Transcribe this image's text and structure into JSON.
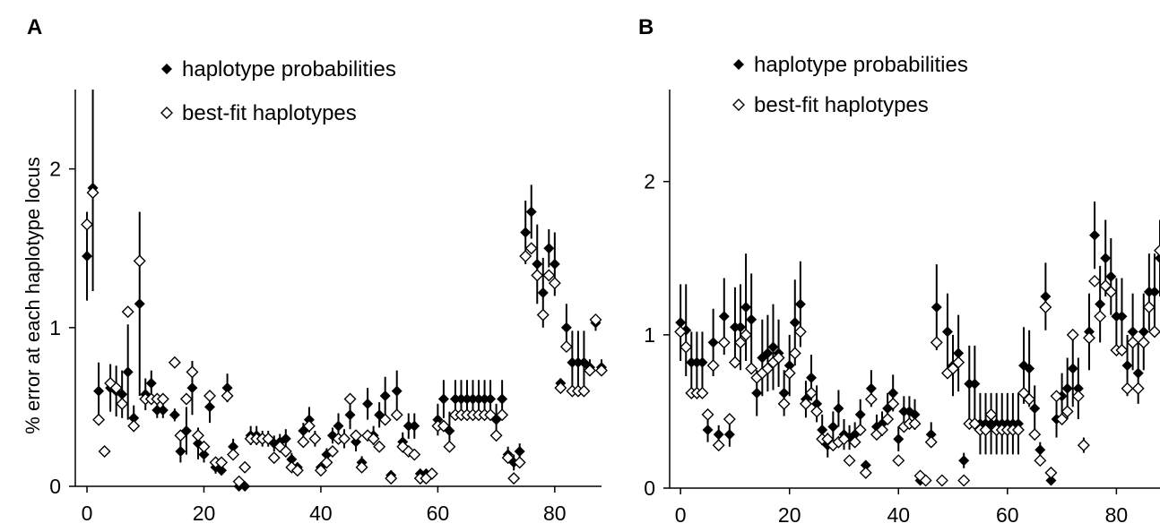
{
  "figure": {
    "ylabel": "% error at each haplotype locus",
    "legend": {
      "prob": "haplotype probabilities",
      "best": "best-fit haplotypes"
    }
  },
  "chart_data": [
    {
      "panel": "A",
      "type": "scatter",
      "ylabel": "% error at each haplotype locus",
      "xlim": [
        -2,
        88
      ],
      "ylim": [
        0,
        2.5
      ],
      "xticks": [
        0,
        20,
        40,
        60,
        80
      ],
      "yticks": [
        0,
        1,
        2
      ],
      "legend_placement": "top-center",
      "series": [
        {
          "name": "haplotype probabilities",
          "marker": "filled-diamond",
          "x": [
            0,
            1,
            2,
            4,
            5,
            6,
            7,
            8,
            9,
            10,
            11,
            12,
            13,
            15,
            16,
            17,
            18,
            19,
            20,
            21,
            22,
            23,
            24,
            25,
            26,
            27,
            28,
            29,
            30,
            31,
            32,
            33,
            34,
            35,
            36,
            37,
            38,
            39,
            40,
            41,
            42,
            43,
            44,
            45,
            46,
            47,
            48,
            49,
            50,
            51,
            52,
            53,
            54,
            55,
            56,
            57,
            58,
            59,
            60,
            61,
            62,
            63,
            64,
            65,
            66,
            67,
            68,
            69,
            70,
            71,
            72,
            73,
            74,
            75,
            76,
            77,
            78,
            79,
            80,
            81,
            82,
            83,
            84,
            85,
            86,
            87,
            88
          ],
          "y": [
            1.45,
            1.88,
            0.6,
            0.62,
            0.6,
            0.58,
            0.72,
            0.43,
            1.15,
            0.58,
            0.65,
            0.48,
            0.48,
            0.45,
            0.22,
            0.35,
            0.62,
            0.27,
            0.2,
            0.5,
            0.12,
            0.1,
            0.62,
            0.25,
            0.0,
            0.0,
            0.32,
            0.32,
            0.3,
            0.3,
            0.27,
            0.28,
            0.3,
            0.17,
            0.12,
            0.35,
            0.42,
            0.3,
            0.12,
            0.2,
            0.32,
            0.38,
            0.3,
            0.45,
            0.28,
            0.15,
            0.52,
            0.32,
            0.45,
            0.57,
            0.07,
            0.6,
            0.28,
            0.38,
            0.38,
            0.08,
            0.08,
            0.08,
            0.42,
            0.55,
            0.35,
            0.55,
            0.55,
            0.55,
            0.55,
            0.55,
            0.55,
            0.55,
            0.42,
            0.55,
            0.2,
            0.15,
            0.22,
            1.6,
            1.73,
            1.4,
            1.22,
            1.5,
            1.4,
            0.65,
            1.0,
            0.78,
            0.78,
            0.78,
            0.75,
            1.03,
            0.75
          ],
          "yerr": [
            0.28,
            0.65,
            0.18,
            0.15,
            0.16,
            0.15,
            0.3,
            0.08,
            0.58,
            0.1,
            0.08,
            0.05,
            0.05,
            0.04,
            0.07,
            0.15,
            0.17,
            0.1,
            0.05,
            0.1,
            0.04,
            0.03,
            0.09,
            0.05,
            0.0,
            0.0,
            0.06,
            0.06,
            0.05,
            0.05,
            0.05,
            0.05,
            0.06,
            0.04,
            0.03,
            0.05,
            0.08,
            0.05,
            0.03,
            0.04,
            0.05,
            0.08,
            0.06,
            0.09,
            0.06,
            0.04,
            0.1,
            0.06,
            0.08,
            0.12,
            0.03,
            0.13,
            0.06,
            0.08,
            0.08,
            0.03,
            0.03,
            0.03,
            0.1,
            0.12,
            0.12,
            0.12,
            0.12,
            0.12,
            0.12,
            0.12,
            0.12,
            0.12,
            0.1,
            0.12,
            0.05,
            0.05,
            0.05,
            0.2,
            0.17,
            0.25,
            0.22,
            0.12,
            0.2,
            0.03,
            0.15,
            0.2,
            0.2,
            0.2,
            0.05,
            0.05,
            0.05
          ]
        },
        {
          "name": "best-fit haplotypes",
          "marker": "open-diamond",
          "x": [
            0,
            1,
            2,
            3,
            4,
            5,
            6,
            7,
            8,
            9,
            10,
            11,
            12,
            13,
            15,
            16,
            17,
            18,
            19,
            20,
            21,
            22,
            23,
            24,
            25,
            26,
            27,
            28,
            29,
            30,
            31,
            32,
            33,
            34,
            35,
            36,
            37,
            38,
            39,
            40,
            41,
            42,
            43,
            44,
            45,
            46,
            47,
            48,
            49,
            50,
            51,
            52,
            53,
            54,
            55,
            56,
            57,
            58,
            59,
            60,
            61,
            62,
            63,
            64,
            65,
            66,
            67,
            68,
            69,
            70,
            71,
            72,
            73,
            74,
            75,
            76,
            77,
            78,
            79,
            80,
            81,
            82,
            83,
            84,
            85,
            86,
            87,
            88
          ],
          "y": [
            1.65,
            1.85,
            0.42,
            0.22,
            0.65,
            0.62,
            0.52,
            1.1,
            0.38,
            1.42,
            0.55,
            0.55,
            0.55,
            0.55,
            0.78,
            0.32,
            0.55,
            0.72,
            0.32,
            0.25,
            0.57,
            0.15,
            0.15,
            0.57,
            0.2,
            0.03,
            0.12,
            0.3,
            0.3,
            0.3,
            0.3,
            0.18,
            0.25,
            0.22,
            0.12,
            0.1,
            0.28,
            0.38,
            0.3,
            0.1,
            0.15,
            0.22,
            0.3,
            0.3,
            0.55,
            0.32,
            0.12,
            0.32,
            0.3,
            0.25,
            0.42,
            0.05,
            0.45,
            0.25,
            0.22,
            0.2,
            0.05,
            0.05,
            0.08,
            0.38,
            0.38,
            0.25,
            0.45,
            0.45,
            0.45,
            0.45,
            0.45,
            0.45,
            0.45,
            0.32,
            0.45,
            0.18,
            0.05,
            0.15,
            1.45,
            1.5,
            1.33,
            1.08,
            1.33,
            1.28,
            0.62,
            0.88,
            0.6,
            0.6,
            0.6,
            0.73,
            1.05,
            0.73
          ]
        }
      ]
    },
    {
      "panel": "B",
      "type": "scatter",
      "xlim": [
        -2,
        88
      ],
      "ylim": [
        0,
        2.6
      ],
      "xticks": [
        0,
        20,
        40,
        60,
        80
      ],
      "yticks": [
        0,
        1,
        2
      ],
      "legend_placement": "top-center",
      "series": [
        {
          "name": "haplotype probabilities",
          "marker": "filled-diamond",
          "x": [
            0,
            1,
            2,
            3,
            4,
            5,
            6,
            7,
            8,
            9,
            10,
            11,
            12,
            13,
            14,
            15,
            16,
            17,
            18,
            19,
            20,
            21,
            22,
            23,
            24,
            25,
            26,
            27,
            28,
            29,
            30,
            31,
            32,
            33,
            34,
            35,
            36,
            37,
            38,
            39,
            40,
            41,
            42,
            43,
            44,
            45,
            46,
            47,
            48,
            49,
            50,
            51,
            52,
            53,
            54,
            55,
            56,
            57,
            58,
            59,
            60,
            61,
            62,
            63,
            64,
            65,
            66,
            67,
            68,
            69,
            70,
            71,
            72,
            73,
            74,
            75,
            76,
            77,
            78,
            79,
            80,
            81,
            82,
            83,
            84,
            85,
            86,
            87,
            88
          ],
          "y": [
            1.08,
            1.03,
            0.82,
            0.82,
            0.82,
            0.38,
            0.95,
            0.35,
            1.12,
            0.35,
            1.05,
            1.05,
            1.18,
            1.1,
            0.62,
            0.85,
            0.88,
            0.92,
            0.88,
            0.62,
            0.8,
            1.08,
            1.2,
            0.58,
            0.72,
            0.55,
            0.38,
            0.28,
            0.4,
            0.52,
            0.35,
            0.33,
            0.35,
            0.48,
            0.15,
            0.65,
            0.4,
            0.42,
            0.52,
            0.62,
            0.32,
            0.5,
            0.5,
            0.48,
            0.05,
            0.05,
            0.35,
            1.18,
            0.05,
            1.02,
            0.8,
            0.88,
            0.18,
            0.68,
            0.68,
            0.42,
            0.42,
            0.42,
            0.42,
            0.42,
            0.42,
            0.42,
            0.42,
            0.8,
            0.78,
            0.52,
            0.25,
            1.25,
            0.05,
            0.45,
            0.6,
            0.65,
            0.78,
            0.65,
            0.28,
            1.02,
            1.65,
            1.2,
            1.5,
            1.38,
            1.12,
            1.12,
            0.8,
            1.02,
            0.75,
            1.02,
            1.28,
            1.28,
            1.5
          ],
          "yerr": [
            0.25,
            0.3,
            0.2,
            0.2,
            0.2,
            0.08,
            0.22,
            0.06,
            0.25,
            0.08,
            0.26,
            0.28,
            0.35,
            0.3,
            0.15,
            0.25,
            0.25,
            0.28,
            0.22,
            0.15,
            0.2,
            0.28,
            0.28,
            0.12,
            0.15,
            0.12,
            0.1,
            0.08,
            0.1,
            0.12,
            0.1,
            0.08,
            0.08,
            0.1,
            0.03,
            0.12,
            0.08,
            0.08,
            0.1,
            0.12,
            0.08,
            0.1,
            0.1,
            0.1,
            0.02,
            0.02,
            0.08,
            0.28,
            0.02,
            0.25,
            0.2,
            0.25,
            0.05,
            0.25,
            0.25,
            0.2,
            0.2,
            0.2,
            0.2,
            0.2,
            0.2,
            0.2,
            0.2,
            0.25,
            0.25,
            0.15,
            0.05,
            0.22,
            0.02,
            0.12,
            0.15,
            0.2,
            0.25,
            0.2,
            0.05,
            0.25,
            0.22,
            0.25,
            0.25,
            0.25,
            0.25,
            0.25,
            0.2,
            0.25,
            0.2,
            0.25,
            0.25,
            0.25,
            0.25
          ]
        },
        {
          "name": "best-fit haplotypes",
          "marker": "open-diamond",
          "x": [
            0,
            1,
            2,
            3,
            4,
            5,
            6,
            7,
            8,
            9,
            10,
            11,
            12,
            13,
            14,
            15,
            16,
            17,
            18,
            19,
            20,
            21,
            22,
            23,
            24,
            25,
            26,
            27,
            28,
            29,
            30,
            31,
            32,
            33,
            34,
            35,
            36,
            37,
            38,
            39,
            40,
            41,
            42,
            43,
            44,
            45,
            46,
            47,
            48,
            49,
            50,
            51,
            52,
            53,
            54,
            55,
            56,
            57,
            58,
            59,
            60,
            61,
            62,
            63,
            64,
            65,
            66,
            67,
            68,
            69,
            70,
            71,
            72,
            73,
            74,
            75,
            76,
            77,
            78,
            79,
            80,
            81,
            82,
            83,
            84,
            85,
            86,
            87,
            88
          ],
          "y": [
            1.02,
            0.92,
            0.62,
            0.62,
            0.62,
            0.48,
            0.8,
            0.28,
            0.95,
            0.45,
            0.82,
            0.95,
            1.0,
            0.78,
            0.72,
            0.75,
            0.78,
            0.82,
            0.85,
            0.55,
            0.75,
            0.88,
            1.02,
            0.55,
            0.62,
            0.5,
            0.32,
            0.32,
            0.28,
            0.3,
            0.32,
            0.18,
            0.3,
            0.38,
            0.1,
            0.58,
            0.35,
            0.38,
            0.45,
            0.55,
            0.18,
            0.4,
            0.42,
            0.42,
            0.08,
            0.05,
            0.3,
            0.95,
            0.05,
            0.75,
            0.78,
            0.82,
            0.05,
            0.42,
            0.42,
            0.38,
            0.38,
            0.48,
            0.38,
            0.38,
            0.38,
            0.38,
            0.38,
            0.62,
            0.58,
            0.35,
            0.18,
            1.18,
            0.1,
            0.6,
            0.45,
            0.5,
            1.0,
            0.6,
            0.28,
            0.98,
            1.35,
            1.12,
            1.32,
            1.28,
            0.9,
            0.9,
            0.65,
            0.95,
            0.65,
            0.95,
            1.18,
            1.02,
            1.55
          ]
        }
      ]
    }
  ]
}
